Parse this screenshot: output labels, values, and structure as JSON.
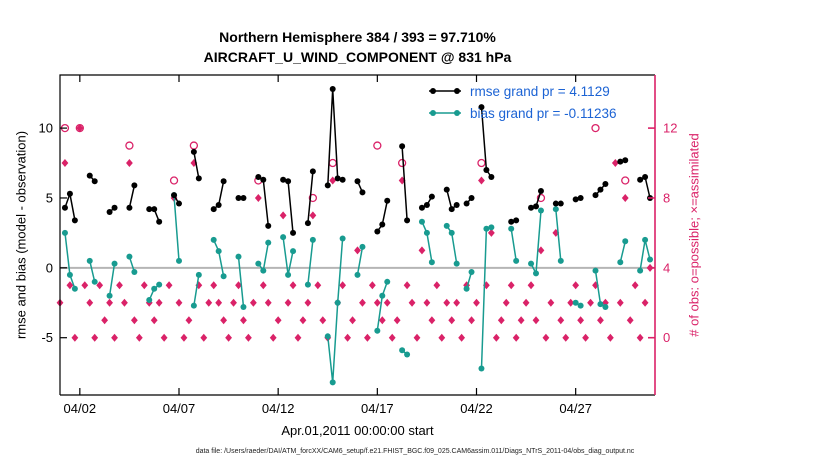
{
  "title": {
    "line1": "Northern Hemisphere 384 / 393 = 97.710%",
    "line2": "AIRCRAFT_U_WIND_COMPONENT @ 831 hPa"
  },
  "axes": {
    "left_label": "rmse and bias (model - observation)",
    "right_label": "# of obs: o=possible; ×=assimilated",
    "x_label": "Apr.01,2011 00:00:00 start",
    "left_ticks": [
      -5,
      0,
      5,
      10
    ],
    "right_ticks": [
      0,
      4,
      8,
      12
    ],
    "x_ticks": [
      {
        "label": "04/02",
        "day": 1
      },
      {
        "label": "04/07",
        "day": 6
      },
      {
        "label": "04/12",
        "day": 11
      },
      {
        "label": "04/17",
        "day": 16
      },
      {
        "label": "04/22",
        "day": 21
      },
      {
        "label": "04/27",
        "day": 26
      }
    ]
  },
  "legend": [
    {
      "label": "rmse grand pr = 4.1129",
      "color": "#000000",
      "text_color": "#1c63d4"
    },
    {
      "label": "bias grand pr = -0.11236",
      "color": "#189b90",
      "text_color": "#1c63d4"
    }
  ],
  "footer": "data file: /Users/raeder/DAI/ATM_forcXX/CAM6_setup/f.e21.FHIST_BGC.f09_025.CAM6assim.011/Diags_NTrS_2011-04/obs_diag_output.nc",
  "colors": {
    "obs": "#da2268",
    "rmse": "#000000",
    "bias": "#189b90",
    "zero_line": "#b5b5b5",
    "axis": "#000000"
  },
  "chart_data": {
    "type": "line",
    "title": "Northern Hemisphere 384 / 393 = 97.710% — AIRCRAFT_U_WIND_COMPONENT @ 831 hPa",
    "xlabel": "Apr.01,2011 00:00:00 start",
    "ylabel_left": "rmse and bias (model - observation)",
    "ylabel_right": "# of obs: o=possible; ×=assimilated",
    "x_bins": 120,
    "x_bin_unit": "6-hour observation bins starting Apr.01,2011 00:00 (30 days shown)",
    "left_ylim": [
      -9.1,
      13.8
    ],
    "right_axis": {
      "ticks": [
        0,
        4,
        8,
        12
      ],
      "maps_to_left": "left_value = count*1.25 - 5"
    },
    "grand": {
      "rmse": 4.1129,
      "bias": -0.11236
    },
    "header_stats": {
      "used": 384,
      "possible": 393,
      "percent": "97.710%"
    },
    "grid": false,
    "legend_position": "top-right-inside",
    "series": [
      {
        "name": "rmse",
        "color": "#000000",
        "points": [
          [
            1,
            4.3
          ],
          [
            2,
            5.3
          ],
          [
            3,
            3.4
          ],
          [
            6,
            6.6
          ],
          [
            7,
            6.2
          ],
          [
            10,
            4.0
          ],
          [
            11,
            4.3
          ],
          [
            14,
            4.3
          ],
          [
            15,
            5.9
          ],
          [
            18,
            4.2
          ],
          [
            19,
            4.2
          ],
          [
            20,
            3.3
          ],
          [
            23,
            5.2
          ],
          [
            24,
            4.6
          ],
          [
            27,
            8.3
          ],
          [
            28,
            6.4
          ],
          [
            31,
            4.2
          ],
          [
            32,
            4.5
          ],
          [
            33,
            6.2
          ],
          [
            36,
            5.0
          ],
          [
            37,
            5.0
          ],
          [
            40,
            6.5
          ],
          [
            41,
            6.3
          ],
          [
            42,
            3.0
          ],
          [
            45,
            6.3
          ],
          [
            46,
            6.2
          ],
          [
            47,
            2.5
          ],
          [
            50,
            3.2
          ],
          [
            51,
            6.9
          ],
          [
            54,
            5.9
          ],
          [
            55,
            12.8
          ],
          [
            56,
            6.4
          ],
          [
            57,
            6.3
          ],
          [
            60,
            6.2
          ],
          [
            61,
            5.4
          ],
          [
            64,
            2.6
          ],
          [
            65,
            3.1
          ],
          [
            66,
            4.8
          ],
          [
            69,
            8.7
          ],
          [
            70,
            3.4
          ],
          [
            73,
            4.3
          ],
          [
            74,
            4.5
          ],
          [
            75,
            5.1
          ],
          [
            78,
            5.6
          ],
          [
            79,
            4.2
          ],
          [
            80,
            4.5
          ],
          [
            82,
            4.6
          ],
          [
            83,
            5.0
          ],
          [
            85,
            11.5
          ],
          [
            86,
            7.0
          ],
          [
            87,
            6.5
          ],
          [
            91,
            3.3
          ],
          [
            92,
            3.4
          ],
          [
            95,
            4.3
          ],
          [
            96,
            4.4
          ],
          [
            97,
            5.5
          ],
          [
            100,
            4.6
          ],
          [
            101,
            4.6
          ],
          [
            104,
            4.9
          ],
          [
            105,
            5.0
          ],
          [
            108,
            5.2
          ],
          [
            109,
            5.6
          ],
          [
            110,
            6.0
          ],
          [
            113,
            7.6
          ],
          [
            114,
            7.7
          ],
          [
            117,
            6.3
          ],
          [
            118,
            6.5
          ],
          [
            119,
            5.0
          ]
        ]
      },
      {
        "name": "bias",
        "color": "#189b90",
        "points": [
          [
            1,
            2.5
          ],
          [
            2,
            -0.5
          ],
          [
            3,
            -1.5
          ],
          [
            6,
            0.5
          ],
          [
            7,
            -1.0
          ],
          [
            10,
            -2.0
          ],
          [
            11,
            0.3
          ],
          [
            14,
            0.8
          ],
          [
            15,
            -0.3
          ],
          [
            18,
            -2.3
          ],
          [
            19,
            -1.5
          ],
          [
            20,
            -1.2
          ],
          [
            23,
            5.2
          ],
          [
            24,
            0.5
          ],
          [
            27,
            -2.7
          ],
          [
            28,
            -0.5
          ],
          [
            31,
            2.0
          ],
          [
            32,
            1.2
          ],
          [
            33,
            -0.6
          ],
          [
            36,
            0.8
          ],
          [
            37,
            -2.8
          ],
          [
            40,
            0.3
          ],
          [
            41,
            -0.2
          ],
          [
            42,
            1.8
          ],
          [
            45,
            2.2
          ],
          [
            46,
            -0.5
          ],
          [
            47,
            1.2
          ],
          [
            50,
            -1.2
          ],
          [
            51,
            2.0
          ],
          [
            54,
            -4.9
          ],
          [
            55,
            -8.2
          ],
          [
            56,
            -2.5
          ],
          [
            57,
            2.1
          ],
          [
            60,
            -0.5
          ],
          [
            61,
            1.5
          ],
          [
            64,
            -4.5
          ],
          [
            65,
            -2.0
          ],
          [
            66,
            -1.0
          ],
          [
            69,
            -5.9
          ],
          [
            70,
            -6.2
          ],
          [
            73,
            3.3
          ],
          [
            74,
            2.5
          ],
          [
            75,
            0.4
          ],
          [
            78,
            3.0
          ],
          [
            79,
            2.5
          ],
          [
            80,
            0.3
          ],
          [
            82,
            -1.5
          ],
          [
            83,
            -0.3
          ],
          [
            85,
            -7.2
          ],
          [
            86,
            2.8
          ],
          [
            87,
            2.9
          ],
          [
            91,
            2.8
          ],
          [
            92,
            0.5
          ],
          [
            95,
            0.3
          ],
          [
            96,
            -0.4
          ],
          [
            97,
            4.1
          ],
          [
            100,
            4.2
          ],
          [
            101,
            0.5
          ],
          [
            104,
            -2.5
          ],
          [
            105,
            -2.7
          ],
          [
            108,
            -0.2
          ],
          [
            109,
            -2.6
          ],
          [
            110,
            -2.8
          ],
          [
            113,
            0.4
          ],
          [
            114,
            1.9
          ],
          [
            117,
            -0.2
          ],
          [
            118,
            2.0
          ],
          [
            119,
            0.6
          ]
        ]
      }
    ],
    "obs_counts": {
      "possible": [
        [
          1,
          12
        ],
        [
          4,
          12
        ],
        [
          14,
          11
        ],
        [
          23,
          9
        ],
        [
          27,
          11
        ],
        [
          40,
          9
        ],
        [
          51,
          8
        ],
        [
          55,
          10
        ],
        [
          64,
          11
        ],
        [
          69,
          10
        ],
        [
          85,
          10
        ],
        [
          97,
          8
        ],
        [
          108,
          12
        ],
        [
          114,
          9
        ]
      ],
      "assimilated": [
        [
          0,
          2
        ],
        [
          1,
          10
        ],
        [
          2,
          3
        ],
        [
          3,
          0
        ],
        [
          4,
          12
        ],
        [
          5,
          3
        ],
        [
          6,
          2
        ],
        [
          7,
          0
        ],
        [
          8,
          3
        ],
        [
          9,
          1
        ],
        [
          10,
          2
        ],
        [
          11,
          0
        ],
        [
          12,
          3
        ],
        [
          13,
          2
        ],
        [
          14,
          10
        ],
        [
          15,
          1
        ],
        [
          16,
          0
        ],
        [
          17,
          3
        ],
        [
          18,
          2
        ],
        [
          19,
          1
        ],
        [
          20,
          2
        ],
        [
          21,
          0
        ],
        [
          22,
          3
        ],
        [
          23,
          8
        ],
        [
          24,
          2
        ],
        [
          25,
          0
        ],
        [
          26,
          1
        ],
        [
          27,
          10
        ],
        [
          28,
          3
        ],
        [
          29,
          0
        ],
        [
          30,
          2
        ],
        [
          31,
          3
        ],
        [
          32,
          2
        ],
        [
          33,
          1
        ],
        [
          34,
          0
        ],
        [
          35,
          2
        ],
        [
          36,
          3
        ],
        [
          37,
          1
        ],
        [
          38,
          0
        ],
        [
          39,
          2
        ],
        [
          40,
          8
        ],
        [
          41,
          3
        ],
        [
          42,
          2
        ],
        [
          43,
          0
        ],
        [
          44,
          1
        ],
        [
          45,
          7
        ],
        [
          46,
          2
        ],
        [
          47,
          3
        ],
        [
          48,
          0
        ],
        [
          49,
          1
        ],
        [
          50,
          2
        ],
        [
          51,
          7
        ],
        [
          52,
          3
        ],
        [
          53,
          1
        ],
        [
          54,
          0
        ],
        [
          55,
          9
        ],
        [
          56,
          2
        ],
        [
          57,
          3
        ],
        [
          58,
          0
        ],
        [
          59,
          1
        ],
        [
          60,
          5
        ],
        [
          61,
          2
        ],
        [
          62,
          0
        ],
        [
          63,
          3
        ],
        [
          64,
          2
        ],
        [
          65,
          1
        ],
        [
          66,
          2
        ],
        [
          67,
          0
        ],
        [
          68,
          1
        ],
        [
          69,
          9
        ],
        [
          70,
          3
        ],
        [
          71,
          2
        ],
        [
          72,
          0
        ],
        [
          73,
          5
        ],
        [
          74,
          2
        ],
        [
          75,
          1
        ],
        [
          76,
          3
        ],
        [
          77,
          0
        ],
        [
          78,
          2
        ],
        [
          79,
          1
        ],
        [
          80,
          2
        ],
        [
          81,
          0
        ],
        [
          82,
          3
        ],
        [
          83,
          1
        ],
        [
          84,
          2
        ],
        [
          85,
          9
        ],
        [
          86,
          3
        ],
        [
          87,
          6
        ],
        [
          88,
          0
        ],
        [
          89,
          1
        ],
        [
          90,
          2
        ],
        [
          91,
          3
        ],
        [
          92,
          0
        ],
        [
          93,
          1
        ],
        [
          94,
          2
        ],
        [
          95,
          3
        ],
        [
          96,
          1
        ],
        [
          97,
          5
        ],
        [
          98,
          0
        ],
        [
          99,
          2
        ],
        [
          100,
          6
        ],
        [
          101,
          1
        ],
        [
          102,
          0
        ],
        [
          103,
          2
        ],
        [
          104,
          3
        ],
        [
          105,
          1
        ],
        [
          106,
          0
        ],
        [
          107,
          2
        ],
        [
          108,
          3
        ],
        [
          109,
          1
        ],
        [
          110,
          2
        ],
        [
          111,
          0
        ],
        [
          112,
          10
        ],
        [
          113,
          2
        ],
        [
          114,
          8
        ],
        [
          115,
          1
        ],
        [
          116,
          3
        ],
        [
          117,
          0
        ],
        [
          118,
          2
        ],
        [
          119,
          4
        ]
      ]
    }
  }
}
